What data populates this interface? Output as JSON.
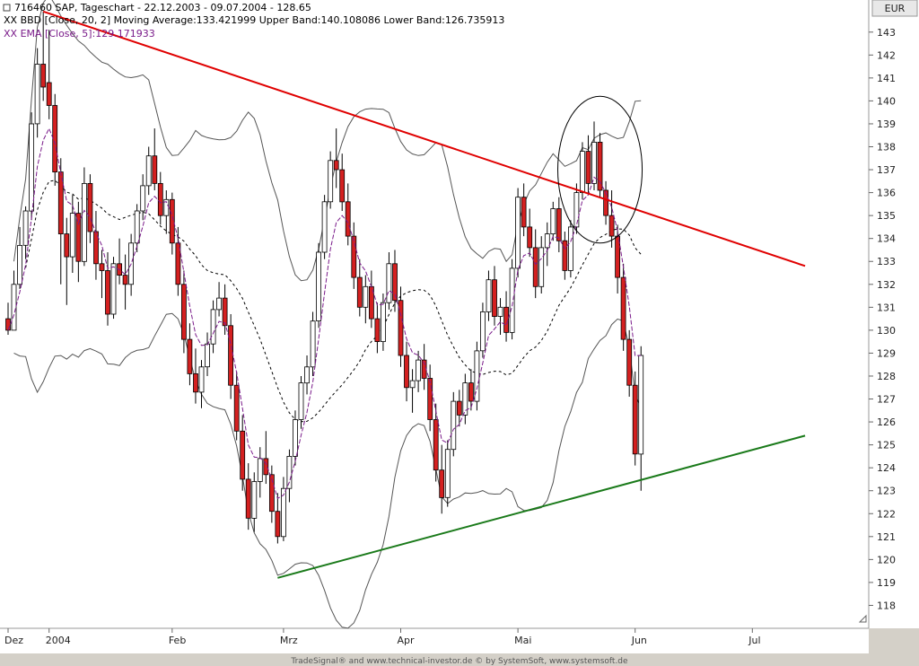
{
  "header": {
    "line1": "716460  SAP, Tageschart - 22.12.2003 - 09.07.2004 - 128.65",
    "line2": "BBD [Close, 20, 2] Moving Average:133.421999 Upper Band:140.108086 Lower Band:126.735913",
    "line3": "EMA [Close, 5]:129.171933"
  },
  "currency_label": "EUR",
  "footer": "TradeSignal® and www.technical-investor.de © by SystemSoft, www.systemsoft.de",
  "colors": {
    "up_candle": "#ffffff",
    "down_candle": "#d42020",
    "resistance": "#e00000",
    "support": "#1a7a1a",
    "bands": "#555555",
    "ema": "#7a1b8a",
    "background": "#ffffff"
  },
  "chart_data": {
    "type": "candlestick",
    "title": "716460  SAP, Tageschart - 22.12.2003 - 09.07.2004 - 128.65",
    "ylim": [
      117,
      144.4
    ],
    "y_ticks": [
      118,
      119,
      120,
      121,
      122,
      123,
      124,
      125,
      126,
      127,
      128,
      129,
      130,
      131,
      132,
      133,
      134,
      135,
      136,
      137,
      138,
      139,
      140,
      141,
      142,
      143
    ],
    "x_labels": [
      "Dez",
      "2004",
      "Feb",
      "Mrz",
      "Apr",
      "Mai",
      "Jun",
      "Jul"
    ],
    "x_label_index": [
      0,
      7,
      28,
      47,
      67,
      87,
      107,
      127
    ],
    "grid": false,
    "ohlc": [
      [
        130.5,
        131.2,
        129.8,
        130.0
      ],
      [
        130.0,
        132.6,
        130.0,
        132.0
      ],
      [
        132.0,
        134.5,
        131.8,
        133.7
      ],
      [
        133.7,
        135.4,
        133.1,
        135.2
      ],
      [
        135.2,
        139.5,
        134.8,
        139.0
      ],
      [
        139.0,
        142.3,
        138.4,
        141.6
      ],
      [
        141.6,
        143.9,
        140.0,
        140.6
      ],
      [
        140.8,
        143.1,
        139.2,
        139.8
      ],
      [
        139.8,
        140.3,
        136.3,
        136.9
      ],
      [
        136.9,
        137.5,
        132.0,
        134.2
      ],
      [
        134.2,
        134.9,
        131.1,
        133.2
      ],
      [
        133.2,
        135.9,
        132.5,
        135.1
      ],
      [
        135.1,
        135.6,
        132.1,
        133.0
      ],
      [
        133.0,
        137.1,
        132.8,
        136.4
      ],
      [
        136.4,
        136.8,
        133.8,
        134.3
      ],
      [
        134.3,
        135.2,
        132.2,
        132.9
      ],
      [
        132.9,
        133.5,
        131.4,
        132.6
      ],
      [
        132.6,
        133.4,
        130.2,
        130.7
      ],
      [
        130.7,
        133.2,
        130.5,
        132.9
      ],
      [
        132.9,
        134.0,
        132.0,
        132.4
      ],
      [
        132.4,
        133.3,
        130.9,
        132.0
      ],
      [
        132.0,
        134.2,
        131.5,
        133.8
      ],
      [
        133.8,
        135.5,
        133.4,
        135.2
      ],
      [
        135.2,
        136.8,
        134.8,
        136.3
      ],
      [
        136.3,
        138.0,
        135.9,
        137.6
      ],
      [
        137.6,
        138.8,
        136.1,
        136.4
      ],
      [
        136.4,
        136.9,
        134.6,
        135.0
      ],
      [
        135.0,
        136.1,
        134.2,
        135.7
      ],
      [
        135.7,
        136.0,
        133.3,
        133.8
      ],
      [
        133.8,
        134.5,
        131.5,
        132.0
      ],
      [
        132.0,
        132.6,
        129.0,
        129.6
      ],
      [
        129.6,
        130.3,
        127.6,
        128.1
      ],
      [
        128.1,
        129.2,
        126.8,
        127.3
      ],
      [
        127.3,
        128.7,
        126.6,
        128.4
      ],
      [
        128.4,
        129.9,
        128.0,
        129.4
      ],
      [
        129.4,
        131.3,
        129.0,
        130.9
      ],
      [
        130.9,
        132.1,
        130.6,
        131.4
      ],
      [
        131.4,
        132.0,
        129.8,
        130.2
      ],
      [
        130.2,
        130.7,
        127.0,
        127.6
      ],
      [
        127.6,
        128.2,
        125.2,
        125.6
      ],
      [
        125.6,
        126.3,
        123.0,
        123.5
      ],
      [
        123.5,
        124.2,
        121.3,
        121.8
      ],
      [
        121.8,
        123.8,
        121.2,
        123.4
      ],
      [
        123.4,
        124.9,
        122.7,
        124.4
      ],
      [
        124.4,
        125.6,
        123.3,
        123.7
      ],
      [
        123.7,
        124.1,
        121.6,
        122.1
      ],
      [
        122.1,
        122.9,
        120.7,
        121.0
      ],
      [
        121.0,
        123.6,
        120.8,
        123.1
      ],
      [
        123.1,
        124.8,
        122.5,
        124.5
      ],
      [
        124.5,
        126.5,
        124.1,
        126.1
      ],
      [
        126.1,
        128.0,
        125.7,
        127.7
      ],
      [
        127.7,
        128.9,
        127.2,
        128.4
      ],
      [
        128.4,
        130.8,
        128.0,
        130.4
      ],
      [
        130.4,
        133.8,
        130.1,
        133.4
      ],
      [
        133.4,
        135.9,
        133.1,
        135.6
      ],
      [
        135.6,
        137.8,
        135.3,
        137.4
      ],
      [
        137.4,
        138.8,
        136.2,
        137.0
      ],
      [
        137.0,
        137.7,
        135.2,
        135.6
      ],
      [
        135.6,
        136.4,
        133.7,
        134.1
      ],
      [
        134.1,
        134.7,
        131.8,
        132.3
      ],
      [
        132.3,
        133.1,
        130.6,
        131.0
      ],
      [
        131.0,
        132.4,
        130.3,
        131.9
      ],
      [
        131.9,
        132.6,
        130.1,
        130.5
      ],
      [
        130.5,
        131.2,
        129.0,
        129.5
      ],
      [
        129.5,
        131.6,
        129.1,
        131.2
      ],
      [
        131.2,
        133.4,
        130.9,
        132.9
      ],
      [
        132.9,
        133.5,
        130.8,
        131.3
      ],
      [
        131.3,
        131.9,
        128.4,
        128.9
      ],
      [
        128.9,
        129.5,
        126.9,
        127.5
      ],
      [
        127.5,
        128.3,
        126.4,
        127.8
      ],
      [
        127.8,
        129.1,
        127.3,
        128.7
      ],
      [
        128.7,
        129.4,
        127.4,
        127.9
      ],
      [
        127.9,
        128.5,
        125.6,
        126.1
      ],
      [
        126.1,
        126.8,
        123.4,
        123.9
      ],
      [
        123.9,
        125.0,
        122.0,
        122.7
      ],
      [
        122.7,
        125.2,
        122.3,
        124.8
      ],
      [
        124.8,
        127.3,
        124.5,
        126.9
      ],
      [
        126.9,
        127.4,
        125.8,
        126.3
      ],
      [
        126.3,
        128.1,
        125.9,
        127.7
      ],
      [
        127.7,
        128.3,
        126.5,
        126.9
      ],
      [
        126.9,
        129.5,
        126.5,
        129.1
      ],
      [
        129.1,
        131.2,
        128.8,
        130.8
      ],
      [
        130.8,
        132.6,
        130.4,
        132.2
      ],
      [
        132.2,
        132.8,
        130.2,
        130.6
      ],
      [
        130.6,
        131.4,
        129.8,
        131.0
      ],
      [
        131.0,
        131.7,
        129.5,
        129.9
      ],
      [
        129.9,
        133.1,
        129.6,
        132.7
      ],
      [
        132.7,
        136.2,
        132.3,
        135.8
      ],
      [
        135.8,
        136.4,
        134.1,
        134.5
      ],
      [
        134.5,
        135.3,
        133.2,
        133.6
      ],
      [
        133.6,
        134.4,
        131.4,
        131.9
      ],
      [
        131.9,
        134.1,
        131.6,
        133.6
      ],
      [
        133.6,
        134.7,
        132.8,
        134.2
      ],
      [
        134.2,
        135.6,
        133.9,
        135.3
      ],
      [
        135.3,
        135.8,
        133.4,
        133.9
      ],
      [
        133.9,
        134.3,
        132.2,
        132.6
      ],
      [
        132.6,
        134.8,
        132.3,
        134.5
      ],
      [
        134.5,
        136.4,
        134.2,
        136.0
      ],
      [
        136.0,
        138.2,
        135.7,
        137.8
      ],
      [
        137.8,
        138.5,
        136.0,
        136.4
      ],
      [
        136.4,
        139.1,
        136.1,
        138.2
      ],
      [
        138.2,
        138.6,
        135.8,
        136.1
      ],
      [
        136.1,
        136.5,
        134.6,
        135.0
      ],
      [
        135.0,
        136.1,
        133.6,
        134.1
      ],
      [
        134.1,
        134.6,
        131.6,
        132.3
      ],
      [
        132.3,
        132.9,
        129.1,
        129.6
      ],
      [
        129.6,
        130.0,
        127.1,
        127.6
      ],
      [
        127.6,
        128.2,
        124.1,
        124.6
      ],
      [
        124.6,
        129.3,
        123.0,
        128.9
      ]
    ],
    "series": [
      {
        "name": "BBD [Close, 20, 2] Moving Average"
      },
      {
        "name": "Upper Band"
      },
      {
        "name": "Lower Band"
      },
      {
        "name": "EMA [Close, 5]"
      }
    ],
    "trendlines": [
      {
        "from": [
          6,
          143.9
        ],
        "to": [
          136,
          132.8
        ]
      },
      {
        "from": [
          46,
          119.2
        ],
        "to": [
          136,
          125.4
        ]
      }
    ],
    "annotation_circle": {
      "center_index": 101,
      "center_value": 137.0,
      "radius_index": 7.2,
      "radius_value": 3.2
    }
  }
}
